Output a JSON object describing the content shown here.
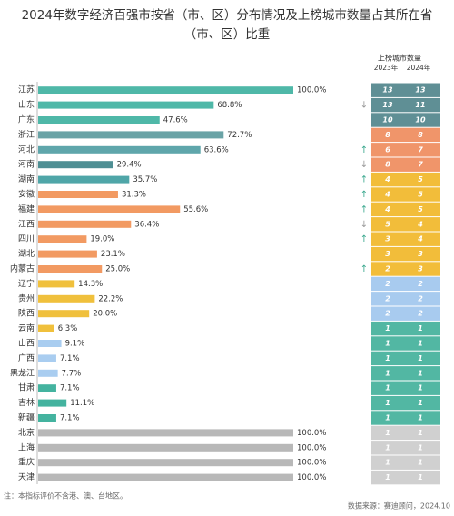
{
  "chart_data": {
    "type": "hbar",
    "title": [
      "2024年数字经济百强市按省（市、区）分布情况及上榜城市数量占其所在省",
      "（市、区）比重"
    ],
    "categories": [
      "江苏",
      "山东",
      "广东",
      "浙江",
      "河北",
      "河南",
      "湖南",
      "安徽",
      "福建",
      "江西",
      "四川",
      "湖北",
      "内蒙古",
      "辽宁",
      "贵州",
      "陕西",
      "云南",
      "山西",
      "广西",
      "黑龙江",
      "甘肃",
      "吉林",
      "新疆",
      "北京",
      "上海",
      "重庆",
      "天津"
    ],
    "xlim": [
      0,
      100
    ],
    "values": [
      100.0,
      68.8,
      47.6,
      72.7,
      63.6,
      29.4,
      35.7,
      31.3,
      55.6,
      36.4,
      19.0,
      23.1,
      25.0,
      14.3,
      22.2,
      20.0,
      6.3,
      9.1,
      7.1,
      7.7,
      7.1,
      11.1,
      7.1,
      100.0,
      100.0,
      100.0,
      100.0
    ],
    "value_labels": [
      "100.0%",
      "68.8%",
      "47.6%",
      "72.7%",
      "63.6%",
      "29.4%",
      "35.7%",
      "31.3%",
      "55.6%",
      "36.4%",
      "19.0%",
      "23.1%",
      "25.0%",
      "14.3%",
      "22.2%",
      "20.0%",
      "6.3%",
      "9.1%",
      "7.1%",
      "7.7%",
      "7.1%",
      "11.1%",
      "7.1%",
      "100.0%",
      "100.0%",
      "100.0%",
      "100.0%"
    ],
    "colors": [
      "#4fb8a8",
      "#4fb8a8",
      "#4fb8a8",
      "#6aa3a6",
      "#5fa6ab",
      "#4f8f94",
      "#4fa6a8",
      "#f29a62",
      "#f29a62",
      "#f29a62",
      "#f29a62",
      "#f29a62",
      "#f29a62",
      "#f0c03c",
      "#f0c03c",
      "#f0c03c",
      "#f0c03c",
      "#a9cdf0",
      "#a9cdf0",
      "#a9cdf0",
      "#44b39f",
      "#44b39f",
      "#44b39f",
      "#b8b8b8",
      "#b8b8b8",
      "#b8b8b8",
      "#b8b8b8"
    ],
    "table": {
      "header": "上榜城市数量",
      "columns": [
        "2023年",
        "2024年"
      ],
      "values_2023": [
        13,
        13,
        10,
        8,
        6,
        8,
        4,
        4,
        4,
        5,
        3,
        3,
        2,
        2,
        2,
        2,
        1,
        1,
        1,
        1,
        1,
        1,
        1,
        1,
        1,
        1,
        1
      ],
      "values_2024": [
        13,
        11,
        10,
        8,
        7,
        7,
        5,
        5,
        5,
        4,
        4,
        3,
        3,
        2,
        2,
        2,
        1,
        1,
        1,
        1,
        1,
        1,
        1,
        1,
        1,
        1,
        1
      ],
      "trend": [
        null,
        "↓",
        null,
        null,
        "↑",
        "↓",
        "↑",
        "↑",
        "↑",
        "↓",
        "↑",
        null,
        "↑",
        null,
        null,
        null,
        null,
        null,
        null,
        null,
        null,
        null,
        null,
        null,
        null,
        null,
        null
      ],
      "cell_colors": [
        "#5f8f95",
        "#5f8f95",
        "#5f8f95",
        "#f0956a",
        "#f0956a",
        "#f0956a",
        "#f2bd3a",
        "#f2bd3a",
        "#f2bd3a",
        "#f2bd3a",
        "#f2bd3a",
        "#f2bd3a",
        "#f2bd3a",
        "#a8cbef",
        "#a8cbef",
        "#a8cbef",
        "#52b7a3",
        "#52b7a3",
        "#52b7a3",
        "#52b7a3",
        "#52b7a3",
        "#52b7a3",
        "#52b7a3",
        "#d0d0d0",
        "#d0d0d0",
        "#d0d0d0",
        "#d0d0d0"
      ]
    },
    "note": "注：本指标评价不含港、澳、台地区。",
    "source": "数据来源：赛迪顾问，2024.10"
  }
}
